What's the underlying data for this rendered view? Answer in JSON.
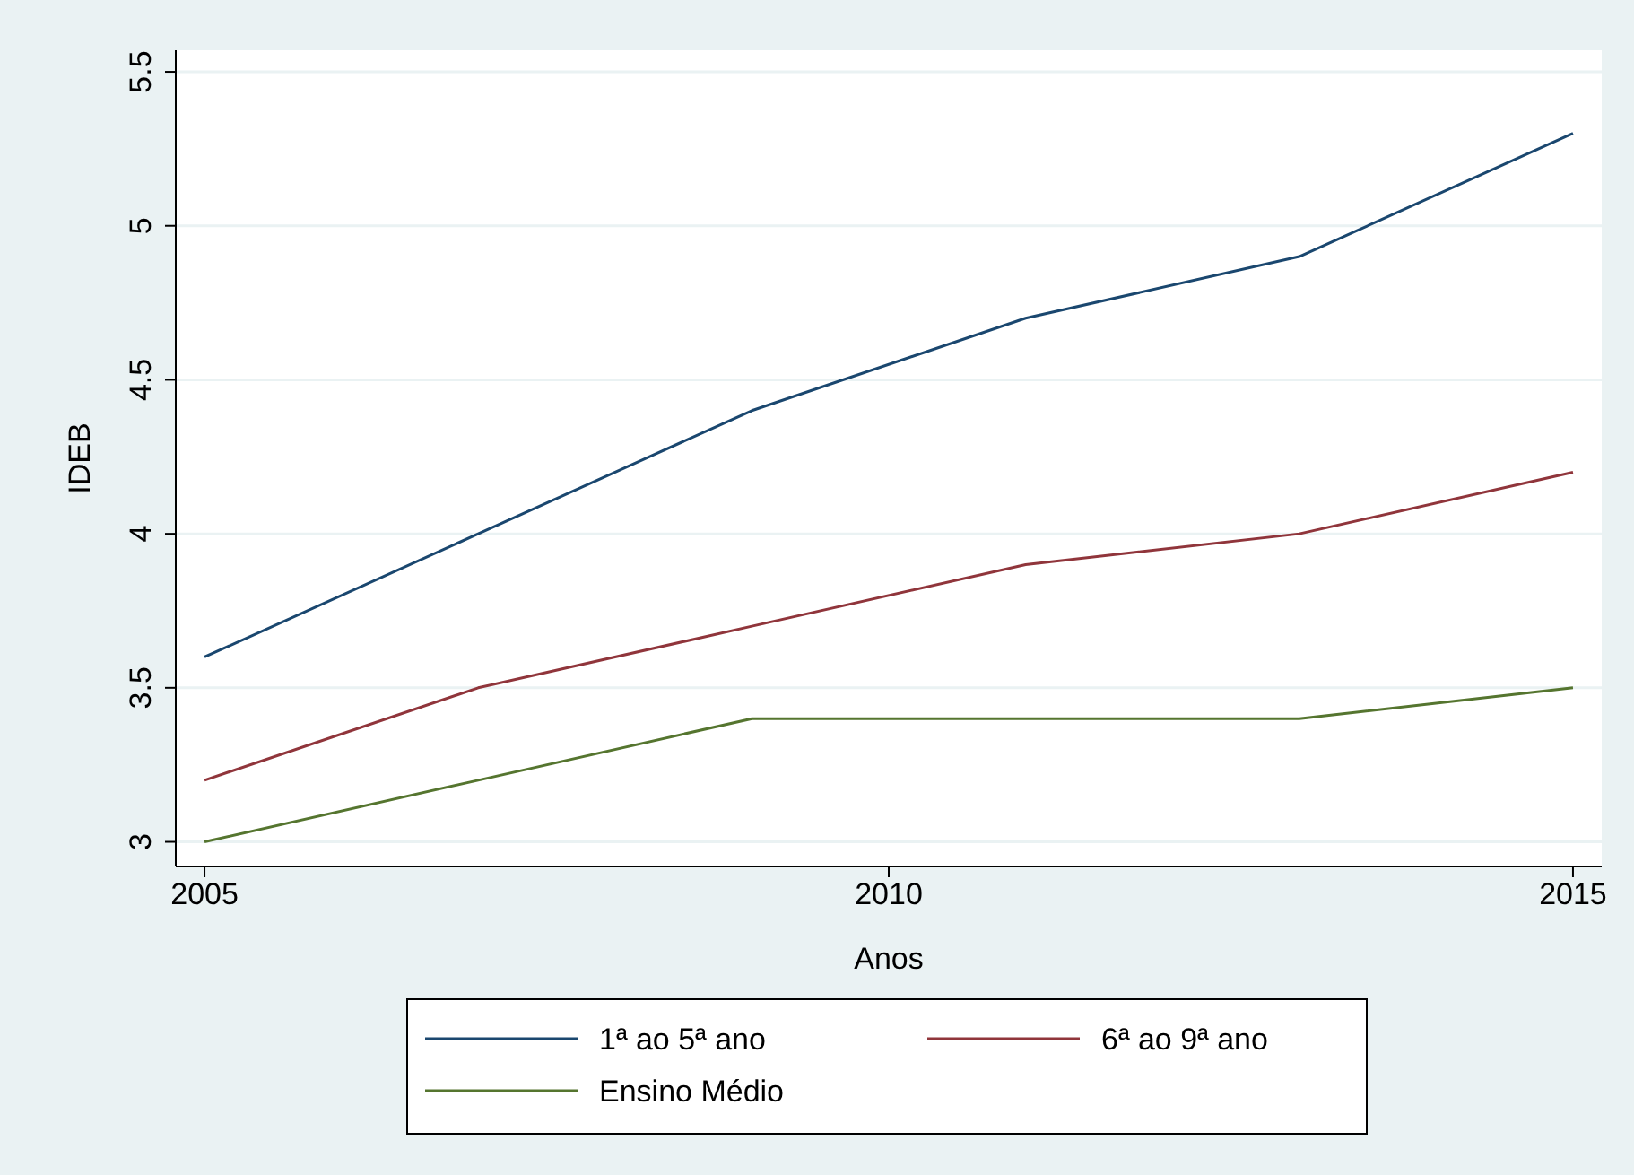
{
  "chart_data": {
    "type": "line",
    "xlabel": "Anos",
    "ylabel": "IDEB",
    "x": [
      2005,
      2007,
      2009,
      2011,
      2013,
      2015
    ],
    "series": [
      {
        "name": "1ª ao 5ª ano",
        "color": "#1a476f",
        "values": [
          3.6,
          4.0,
          4.4,
          4.7,
          4.9,
          5.3
        ]
      },
      {
        "name": "6ª ao 9ª ano",
        "color": "#90353b",
        "values": [
          3.2,
          3.5,
          3.7,
          3.9,
          4.0,
          4.2
        ]
      },
      {
        "name": "Ensino Médio",
        "color": "#55752f",
        "values": [
          3.0,
          3.2,
          3.4,
          3.4,
          3.4,
          3.5
        ]
      }
    ],
    "xlim": [
      2004.79,
      2015.21
    ],
    "xticks": [
      2005,
      2010,
      2015
    ],
    "ylim": [
      2.92,
      5.57
    ],
    "yticks": [
      3,
      3.5,
      4,
      4.5,
      5,
      5.5
    ],
    "grid": "y",
    "legend": "bottom",
    "marker": "none",
    "line_style": "solid"
  }
}
